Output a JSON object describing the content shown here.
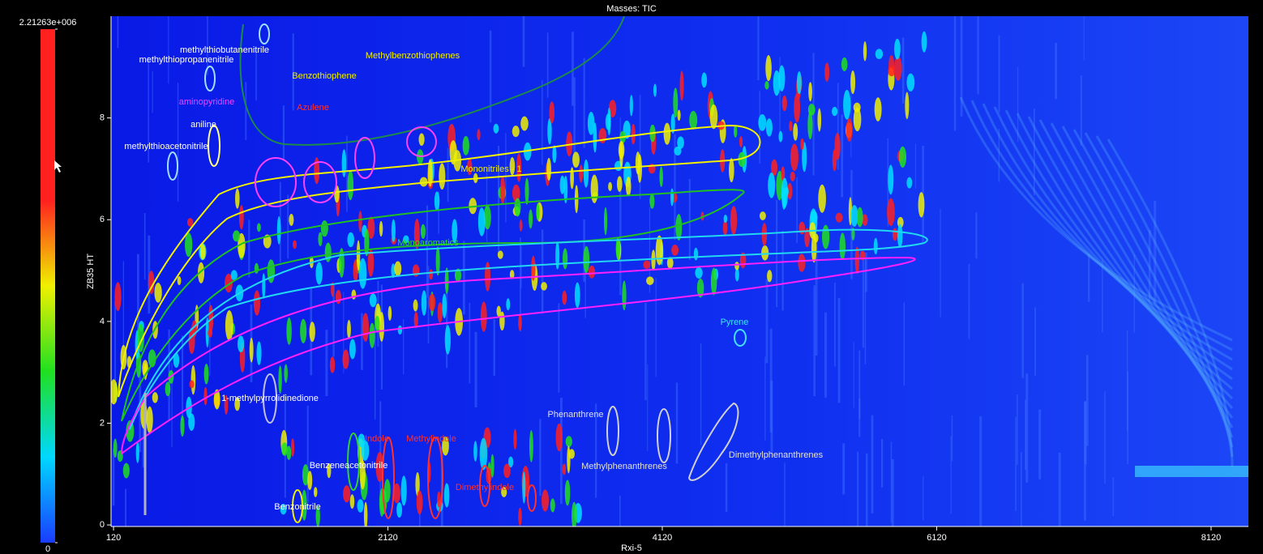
{
  "chart_data": {
    "type": "contour",
    "title": "Masses: TIC",
    "x_label": "Rxi-5",
    "y_label": "ZB35 HT",
    "xlim": [
      102,
      8392
    ],
    "ylim": [
      -0.03,
      10
    ],
    "xticks": [
      120,
      2120,
      4120,
      6120,
      8120
    ],
    "yticks": [
      0,
      2,
      4,
      6,
      8
    ],
    "colorbar": {
      "lim": [
        0,
        2212630
      ],
      "ticks": [
        0,
        {
          "value": 2212630,
          "label": "2.21263e+006"
        }
      ],
      "colormap": [
        "#1a3cff",
        "#00d8ff",
        "#20e020",
        "#f0f000",
        "#ff2020",
        "#ff2020",
        "#ff2020"
      ]
    },
    "annotations": [
      {
        "text": "methylthiobutanenitrile",
        "color": "#ffffff"
      },
      {
        "text": "methylthiopropanenitrile",
        "color": "#ffffff"
      },
      {
        "text": "Methylbenzothiophenes",
        "color": "#f0f000"
      },
      {
        "text": "Benzothiophene",
        "color": "#f0f000"
      },
      {
        "text": "aminopyridine",
        "color": "#ff40ff"
      },
      {
        "text": "Azulene",
        "color": "#ff3030"
      },
      {
        "text": "aniline",
        "color": "#ffffff"
      },
      {
        "text": "methylthioacetonitrile",
        "color": "#ffffff"
      },
      {
        "text": "Mononitriles - 1",
        "color": "#f0f000"
      },
      {
        "text": "Monoaromatics",
        "color": "#30e030"
      },
      {
        "text": "Pyrene",
        "color": "#40e0ff"
      },
      {
        "text": "1-methylpyrrolidinedione",
        "color": "#ffffff"
      },
      {
        "text": "Phenanthrene",
        "color": "#e0e0e0"
      },
      {
        "text": "Indole",
        "color": "#ff3030"
      },
      {
        "text": "Methylindole",
        "color": "#ff3030"
      },
      {
        "text": "Methylphenanthrenes",
        "color": "#e0e0e0"
      },
      {
        "text": "Dimethylphenanthrenes",
        "color": "#e0e0e0"
      },
      {
        "text": "Benzeneacetonitrile",
        "color": "#ffffff"
      },
      {
        "text": "Dimethylindole",
        "color": "#ff3030"
      },
      {
        "text": "Benzonitrile",
        "color": "#ffffff"
      }
    ]
  }
}
